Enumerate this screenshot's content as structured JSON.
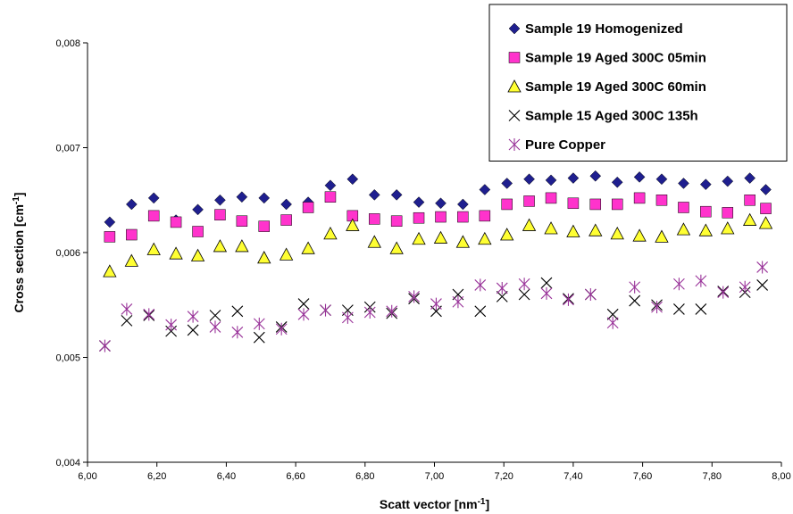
{
  "chart_data": {
    "type": "scatter",
    "title": "",
    "xlabel": "Scatt vector [nm",
    "xlabel_sup": "-1",
    "xlabel_end": "]",
    "ylabel": "Cross section [cm",
    "ylabel_sup": "-1",
    "ylabel_end": "]",
    "xlim": [
      6.0,
      8.0
    ],
    "ylim": [
      0.004,
      0.008
    ],
    "x_ticks": [
      "6,00",
      "6,20",
      "6,40",
      "6,60",
      "6,80",
      "7,00",
      "7,20",
      "7,40",
      "7,60",
      "7,80",
      "8,00"
    ],
    "y_ticks": [
      "0,004",
      "0,005",
      "0,006",
      "0,007",
      "0,008"
    ],
    "grid": false,
    "legend_position": "top-right",
    "series": [
      {
        "name": "Sample 19 Homogenized",
        "marker": "diamond",
        "color": "#1f1f8f",
        "x": [
          6.064,
          6.127,
          6.191,
          6.255,
          6.318,
          6.382,
          6.445,
          6.509,
          6.573,
          6.636,
          6.7,
          6.764,
          6.827,
          6.891,
          6.955,
          7.018,
          7.082,
          7.145,
          7.209,
          7.273,
          7.336,
          7.4,
          7.464,
          7.527,
          7.591,
          7.655,
          7.718,
          7.782,
          7.845,
          7.909,
          7.955
        ],
        "y": [
          0.00629,
          0.00646,
          0.00652,
          0.00631,
          0.00641,
          0.0065,
          0.00653,
          0.00652,
          0.00646,
          0.00648,
          0.00664,
          0.0067,
          0.00655,
          0.00655,
          0.00648,
          0.00647,
          0.00646,
          0.0066,
          0.00666,
          0.0067,
          0.00669,
          0.00671,
          0.00673,
          0.00667,
          0.00672,
          0.0067,
          0.00666,
          0.00665,
          0.00668,
          0.00671,
          0.0066
        ]
      },
      {
        "name": "Sample 19 Aged 300C 05min",
        "marker": "square",
        "color": "#ff33cc",
        "x": [
          6.064,
          6.127,
          6.191,
          6.255,
          6.318,
          6.382,
          6.445,
          6.509,
          6.573,
          6.636,
          6.7,
          6.764,
          6.827,
          6.891,
          6.955,
          7.018,
          7.082,
          7.145,
          7.209,
          7.273,
          7.336,
          7.4,
          7.464,
          7.527,
          7.591,
          7.655,
          7.718,
          7.782,
          7.845,
          7.909,
          7.955
        ],
        "y": [
          0.00615,
          0.00617,
          0.00635,
          0.00629,
          0.0062,
          0.00636,
          0.0063,
          0.00625,
          0.00631,
          0.00643,
          0.00653,
          0.00635,
          0.00632,
          0.0063,
          0.00633,
          0.00634,
          0.00634,
          0.00635,
          0.00646,
          0.00649,
          0.00652,
          0.00647,
          0.00646,
          0.00646,
          0.00652,
          0.0065,
          0.00643,
          0.00639,
          0.00638,
          0.0065,
          0.00642
        ]
      },
      {
        "name": "Sample 19 Aged 300C 60min",
        "marker": "triangle",
        "color": "#ffff33",
        "x": [
          6.064,
          6.127,
          6.191,
          6.255,
          6.318,
          6.382,
          6.445,
          6.509,
          6.573,
          6.636,
          6.7,
          6.764,
          6.827,
          6.891,
          6.955,
          7.018,
          7.082,
          7.145,
          7.209,
          7.273,
          7.336,
          7.4,
          7.464,
          7.527,
          7.591,
          7.655,
          7.718,
          7.782,
          7.845,
          7.909,
          7.955
        ],
        "y": [
          0.00582,
          0.00592,
          0.00603,
          0.00599,
          0.00597,
          0.00606,
          0.00606,
          0.00595,
          0.00598,
          0.00604,
          0.00618,
          0.00626,
          0.0061,
          0.00604,
          0.00613,
          0.00614,
          0.0061,
          0.00613,
          0.00617,
          0.00626,
          0.00623,
          0.0062,
          0.00621,
          0.00618,
          0.00616,
          0.00615,
          0.00622,
          0.00621,
          0.00623,
          0.00631,
          0.00628
        ]
      },
      {
        "name": "Sample 15 Aged 300C 135h",
        "marker": "x",
        "color": "#000000",
        "x": [
          6.05,
          6.113,
          6.177,
          6.241,
          6.304,
          6.368,
          6.432,
          6.495,
          6.559,
          6.623,
          6.686,
          6.75,
          6.814,
          6.877,
          6.941,
          7.005,
          7.068,
          7.132,
          7.195,
          7.259,
          7.323,
          7.386,
          7.45,
          7.514,
          7.577,
          7.641,
          7.705,
          7.768,
          7.832,
          7.895,
          7.945
        ],
        "y": [
          0.00511,
          0.00535,
          0.0054,
          0.00525,
          0.00526,
          0.0054,
          0.00544,
          0.00519,
          0.00529,
          0.00551,
          0.00545,
          0.00545,
          0.00548,
          0.00542,
          0.00556,
          0.00544,
          0.0056,
          0.00544,
          0.00558,
          0.0056,
          0.00571,
          0.00556,
          0.0056,
          0.00541,
          0.00554,
          0.0055,
          0.00546,
          0.00546,
          0.00563,
          0.00562,
          0.00569
        ]
      },
      {
        "name": "Pure Copper",
        "marker": "asterisk",
        "color": "#993399",
        "x": [
          6.05,
          6.113,
          6.177,
          6.241,
          6.304,
          6.368,
          6.432,
          6.495,
          6.559,
          6.623,
          6.686,
          6.75,
          6.814,
          6.877,
          6.941,
          7.005,
          7.068,
          7.132,
          7.195,
          7.259,
          7.323,
          7.386,
          7.45,
          7.514,
          7.577,
          7.641,
          7.705,
          7.768,
          7.832,
          7.895,
          7.945
        ],
        "y": [
          0.00511,
          0.00546,
          0.00541,
          0.00531,
          0.00539,
          0.00529,
          0.00524,
          0.00532,
          0.00527,
          0.00541,
          0.00545,
          0.00538,
          0.00543,
          0.00544,
          0.00558,
          0.00551,
          0.00553,
          0.00569,
          0.00566,
          0.0057,
          0.00561,
          0.00555,
          0.0056,
          0.00533,
          0.00567,
          0.00548,
          0.0057,
          0.00573,
          0.00562,
          0.00567,
          0.00586
        ]
      }
    ]
  }
}
